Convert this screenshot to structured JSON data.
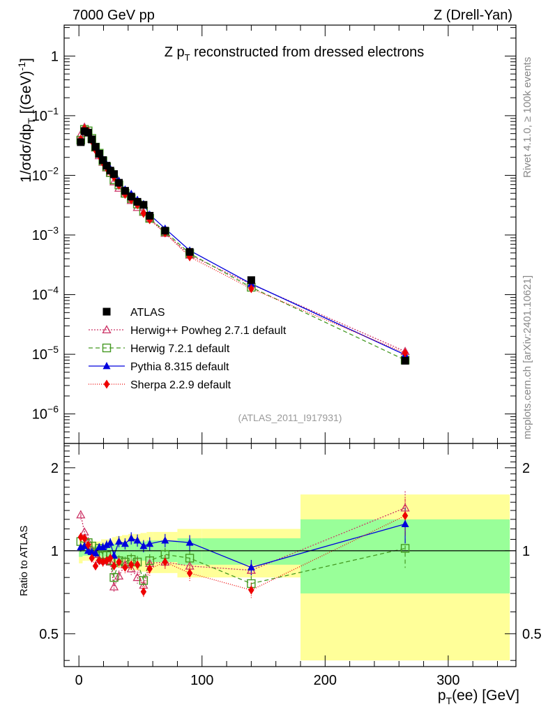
{
  "header": {
    "left": "7000 GeV pp",
    "right": "Z (Drell-Yan)"
  },
  "chart_data": {
    "type": "scatter",
    "title": "Z p_T reconstructed from dressed electrons",
    "title_main": "Z p",
    "title_sub": "T",
    "title_rest": " reconstructed from dressed electrons",
    "ylabel": "1/σdσ/dp_T [(GeV)^-1]",
    "ylabel_parts": {
      "a": "1/σdσ/dp",
      "sub": "T",
      "b": " [(GeV)",
      "sup": "-1",
      "c": "]"
    },
    "xlabel_parts": {
      "a": "p",
      "sub": "T",
      "b": "(ee) [GeV]"
    },
    "ratio_ylabel": "Ratio to ATLAS",
    "analysis_id": "(ATLAS_2011_I917931)",
    "side_text_top": "Rivet 4.1.0, ≥ 100k events",
    "side_text_bottom": "mcplots.cern.ch [arXiv:2401.10621]",
    "xlim": [
      -12,
      355
    ],
    "ylim_main": [
      3.2e-07,
      3.3
    ],
    "ylim_ratio": [
      0.38,
      2.45
    ],
    "x_ticks": [
      0,
      100,
      200,
      300
    ],
    "main_ticks": [
      {
        "v": 1,
        "m": "1",
        "e": ""
      },
      {
        "v": 0.1,
        "m": "10",
        "e": "−1"
      },
      {
        "v": 0.01,
        "m": "10",
        "e": "−2"
      },
      {
        "v": 0.001,
        "m": "10",
        "e": "−3"
      },
      {
        "v": 0.0001,
        "m": "10",
        "e": "−4"
      },
      {
        "v": 1e-05,
        "m": "10",
        "e": "−5"
      },
      {
        "v": 1e-06,
        "m": "10",
        "e": "−6"
      }
    ],
    "ratio_ticks": [
      {
        "v": 0.5,
        "label": "0.5"
      },
      {
        "v": 1,
        "label": "1"
      },
      {
        "v": 2,
        "label": "2"
      }
    ],
    "bins": [
      {
        "x": 1.5,
        "lo": 0,
        "hi": 3,
        "y": 0.036,
        "r": 1.0,
        "g": 0.05,
        "yel": 0.1
      },
      {
        "x": 4.5,
        "lo": 3,
        "hi": 6,
        "y": 0.055,
        "r": 1.0,
        "g": 0.04,
        "yel": 0.08
      },
      {
        "x": 7.5,
        "lo": 6,
        "hi": 9,
        "y": 0.052,
        "r": 1.0,
        "g": 0.04,
        "yel": 0.08
      },
      {
        "x": 10.5,
        "lo": 9,
        "hi": 12,
        "y": 0.04,
        "r": 1.0,
        "g": 0.04,
        "yel": 0.08
      },
      {
        "x": 13.5,
        "lo": 12,
        "hi": 15,
        "y": 0.03,
        "r": 1.0,
        "g": 0.04,
        "yel": 0.08
      },
      {
        "x": 16.5,
        "lo": 15,
        "hi": 18,
        "y": 0.023,
        "r": 1.0,
        "g": 0.04,
        "yel": 0.08
      },
      {
        "x": 19.5,
        "lo": 18,
        "hi": 21,
        "y": 0.018,
        "r": 1.0,
        "g": 0.05,
        "yel": 0.1
      },
      {
        "x": 22.5,
        "lo": 21,
        "hi": 24,
        "y": 0.0145,
        "r": 1.0,
        "g": 0.05,
        "yel": 0.1
      },
      {
        "x": 25.5,
        "lo": 24,
        "hi": 27,
        "y": 0.012,
        "r": 1.0,
        "g": 0.05,
        "yel": 0.1
      },
      {
        "x": 28.5,
        "lo": 27,
        "hi": 30,
        "y": 0.0105,
        "r": 1.0,
        "g": 0.06,
        "yel": 0.12
      },
      {
        "x": 32.5,
        "lo": 30,
        "hi": 35,
        "y": 0.0075,
        "r": 1.0,
        "g": 0.07,
        "yel": 0.13
      },
      {
        "x": 37.5,
        "lo": 35,
        "hi": 40,
        "y": 0.0055,
        "r": 1.0,
        "g": 0.07,
        "yel": 0.14
      },
      {
        "x": 42.5,
        "lo": 40,
        "hi": 45,
        "y": 0.0044,
        "r": 1.0,
        "g": 0.08,
        "yel": 0.15
      },
      {
        "x": 47.5,
        "lo": 45,
        "hi": 50,
        "y": 0.0036,
        "r": 1.0,
        "g": 0.08,
        "yel": 0.15
      },
      {
        "x": 52.5,
        "lo": 50,
        "hi": 55,
        "y": 0.0032,
        "r": 1.0,
        "g": 0.08,
        "yel": 0.16
      },
      {
        "x": 57.5,
        "lo": 55,
        "hi": 60,
        "y": 0.0021,
        "r": 1.0,
        "g": 0.09,
        "yel": 0.17
      },
      {
        "x": 70,
        "lo": 60,
        "hi": 80,
        "y": 0.00118,
        "r": 1.0,
        "g": 0.09,
        "yel": 0.17
      },
      {
        "x": 90,
        "lo": 80,
        "hi": 100,
        "y": 0.00052,
        "r": 1.0,
        "g": 0.11,
        "yel": 0.2
      },
      {
        "x": 140,
        "lo": 100,
        "hi": 180,
        "y": 0.000175,
        "r": 1.0,
        "g": 0.11,
        "yel": 0.2
      },
      {
        "x": 265,
        "lo": 180,
        "hi": 350,
        "y": 7.8e-06,
        "r": 1.0,
        "g": 0.3,
        "yel": 0.6
      }
    ],
    "series": [
      {
        "name": "ATLAS",
        "label": "ATLAS",
        "marker": "square-filled",
        "color": "#000000",
        "dash": "",
        "x": [
          1.5,
          4.5,
          7.5,
          10.5,
          13.5,
          16.5,
          19.5,
          22.5,
          25.5,
          28.5,
          32.5,
          37.5,
          42.5,
          47.5,
          52.5,
          57.5,
          70,
          90,
          140,
          265
        ],
        "y": [
          0.036,
          0.055,
          0.052,
          0.04,
          0.03,
          0.023,
          0.018,
          0.0145,
          0.012,
          0.0105,
          0.0075,
          0.0055,
          0.0044,
          0.0036,
          0.0032,
          0.0021,
          0.00118,
          0.00052,
          0.000175,
          7.8e-06
        ],
        "ratio": [
          1,
          1,
          1,
          1,
          1,
          1,
          1,
          1,
          1,
          1,
          1,
          1,
          1,
          1,
          1,
          1,
          1,
          1,
          1,
          1
        ]
      },
      {
        "name": "Herwig++ Powheg 2.7.1 default",
        "label": "Herwig++ Powheg 2.7.1 default",
        "marker": "triangle-open",
        "color": "#cc3366",
        "dash": "2,2",
        "x": [
          1.5,
          4.5,
          7.5,
          10.5,
          13.5,
          16.5,
          19.5,
          22.5,
          25.5,
          28.5,
          32.5,
          37.5,
          42.5,
          47.5,
          52.5,
          57.5,
          70,
          90,
          140,
          265
        ],
        "y": [
          0.0486,
          0.0643,
          0.0562,
          0.0404,
          0.0291,
          0.0214,
          0.0166,
          0.0133,
          0.0109,
          0.0078,
          0.0061,
          0.0049,
          0.0038,
          0.0029,
          0.0024,
          0.0019,
          0.00107,
          0.00046,
          0.000149,
          1.12e-05
        ],
        "ratio": [
          1.35,
          1.17,
          1.08,
          1.01,
          0.97,
          0.93,
          0.92,
          0.92,
          0.91,
          0.74,
          0.81,
          0.89,
          0.86,
          0.8,
          0.75,
          0.9,
          0.91,
          0.88,
          0.85,
          1.43
        ]
      },
      {
        "name": "Herwig 7.2.1 default",
        "label": "Herwig 7.2.1 default",
        "marker": "square-open",
        "color": "#449922",
        "dash": "6,4",
        "x": [
          1.5,
          4.5,
          7.5,
          10.5,
          13.5,
          16.5,
          19.5,
          22.5,
          25.5,
          28.5,
          32.5,
          37.5,
          42.5,
          47.5,
          52.5,
          57.5,
          70,
          90,
          140,
          265
        ],
        "y": [
          0.0389,
          0.0589,
          0.0556,
          0.0416,
          0.0297,
          0.0235,
          0.0175,
          0.0139,
          0.0111,
          0.0084,
          0.0069,
          0.005,
          0.0041,
          0.0033,
          0.0025,
          0.0019,
          0.00114,
          0.00049,
          0.000133,
          8e-06
        ],
        "ratio": [
          1.08,
          1.07,
          1.07,
          1.04,
          0.99,
          1.02,
          0.97,
          0.96,
          0.92,
          0.8,
          0.92,
          0.91,
          0.93,
          0.91,
          0.78,
          0.92,
          0.97,
          0.94,
          0.76,
          1.02
        ]
      },
      {
        "name": "Pythia 8.315 default",
        "label": "Pythia 8.315 default",
        "marker": "triangle-filled",
        "color": "#0000dd",
        "dash": "",
        "x": [
          1.5,
          4.5,
          7.5,
          10.5,
          13.5,
          16.5,
          19.5,
          22.5,
          25.5,
          28.5,
          32.5,
          37.5,
          42.5,
          47.5,
          52.5,
          57.5,
          70,
          90,
          140,
          265
        ],
        "y": [
          0.0372,
          0.0569,
          0.052,
          0.0396,
          0.0294,
          0.0238,
          0.0186,
          0.0152,
          0.0129,
          0.0101,
          0.0081,
          0.0058,
          0.0049,
          0.0039,
          0.0033,
          0.0022,
          0.00128,
          0.00055,
          0.000152,
          9.8e-06
        ],
        "ratio": [
          1.03,
          1.04,
          1.0,
          0.99,
          0.98,
          1.03,
          1.03,
          1.05,
          1.07,
          0.96,
          1.08,
          1.06,
          1.11,
          1.09,
          1.04,
          1.06,
          1.09,
          1.07,
          0.87,
          1.25
        ]
      },
      {
        "name": "Sherpa 2.2.9 default",
        "label": "Sherpa 2.2.9 default",
        "marker": "diamond-filled",
        "color": "#ee0000",
        "dash": "1,2",
        "x": [
          1.5,
          4.5,
          7.5,
          10.5,
          13.5,
          16.5,
          19.5,
          22.5,
          25.5,
          28.5,
          32.5,
          37.5,
          42.5,
          47.5,
          52.5,
          57.5,
          70,
          90,
          140,
          265
        ],
        "y": [
          0.0403,
          0.0611,
          0.0546,
          0.0376,
          0.0264,
          0.0212,
          0.0163,
          0.0133,
          0.0113,
          0.0093,
          0.0068,
          0.0048,
          0.0039,
          0.0032,
          0.0023,
          0.0018,
          0.00108,
          0.00043,
          0.000126,
          1.05e-05
        ],
        "ratio": [
          1.12,
          1.11,
          1.05,
          0.94,
          0.88,
          0.92,
          0.91,
          0.92,
          0.94,
          0.88,
          0.91,
          0.87,
          0.89,
          0.89,
          0.71,
          0.86,
          0.91,
          0.83,
          0.72,
          1.34
        ]
      }
    ]
  }
}
